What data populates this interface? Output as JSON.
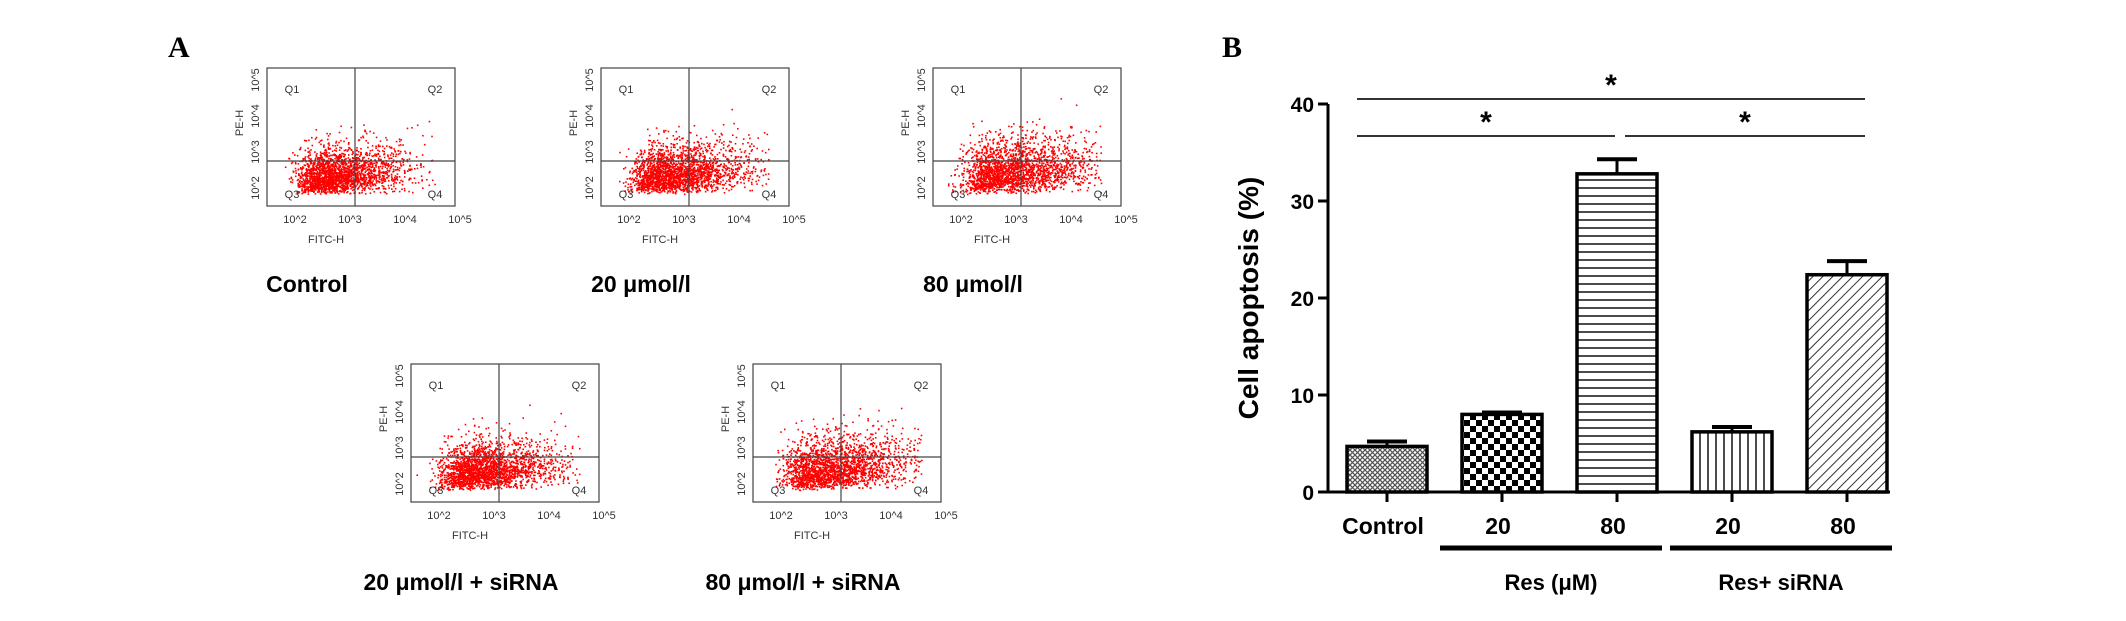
{
  "panel_a": {
    "letter": "A",
    "x_axis_label": "FITC-H",
    "y_axis_label": "PE-H",
    "quadrants": [
      "Q1",
      "Q2",
      "Q3",
      "Q4"
    ],
    "x_ticks": [
      "10^2",
      "10^3",
      "10^4",
      "10^5"
    ],
    "y_ticks": [
      "10^2",
      "10^3",
      "10^4",
      "10^5"
    ],
    "point_color": "#ff0000",
    "plots": [
      {
        "label": "Control"
      },
      {
        "label": "20 μmol/l"
      },
      {
        "label": "80 μmol/l"
      },
      {
        "label": "20 μmol/l + siRNA"
      },
      {
        "label": "80 μmol/l + siRNA"
      }
    ]
  },
  "chart_data": {
    "type": "bar",
    "panel_letter": "B",
    "ylabel": "Cell apoptosis (%)",
    "ylim": [
      0,
      40
    ],
    "yticks": [
      "0",
      "10",
      "20",
      "30",
      "40"
    ],
    "categories": [
      "Control",
      "20",
      "80",
      "20",
      "80"
    ],
    "values": [
      4.7,
      8.0,
      32.8,
      6.2,
      22.4
    ],
    "errors": [
      0.5,
      0.2,
      1.5,
      0.5,
      1.4
    ],
    "patterns": [
      "fine-crosshatch",
      "checker",
      "horizontal-lines",
      "vertical-lines",
      "diagonal-lines"
    ],
    "groups": [
      {
        "label": "Res (μM)",
        "categories": [
          1,
          2
        ]
      },
      {
        "label": "Res+ siRNA",
        "categories": [
          3,
          4
        ]
      }
    ],
    "significance": [
      {
        "from": 0,
        "to": 4,
        "label": "*"
      },
      {
        "from": 0,
        "to": 2,
        "label": "*"
      },
      {
        "from": 2,
        "to": 4,
        "label": "*"
      }
    ]
  }
}
